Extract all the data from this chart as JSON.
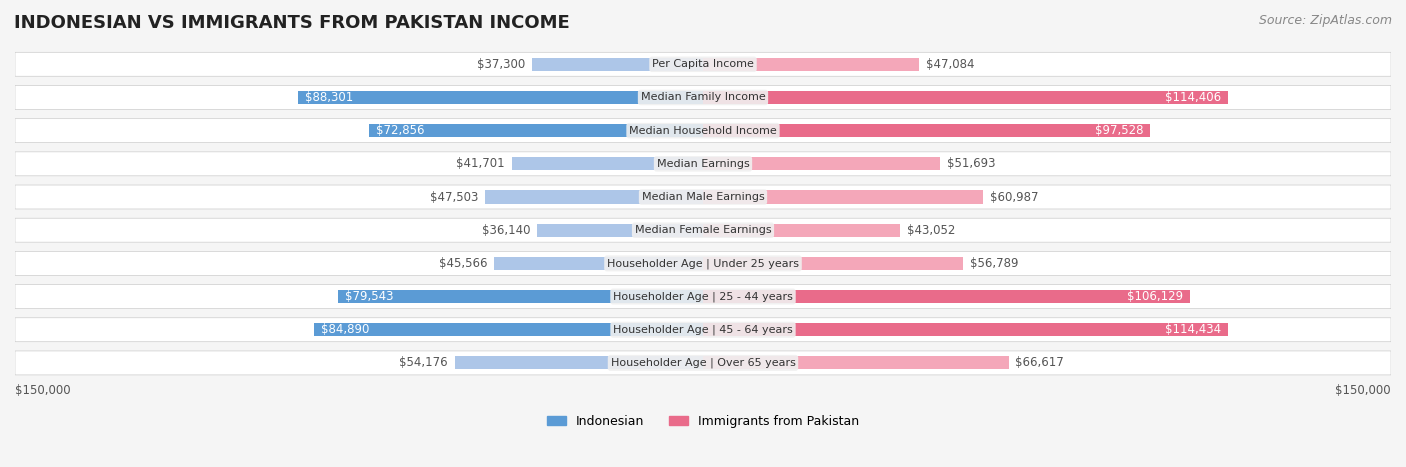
{
  "title": "INDONESIAN VS IMMIGRANTS FROM PAKISTAN INCOME",
  "source": "Source: ZipAtlas.com",
  "categories": [
    "Per Capita Income",
    "Median Family Income",
    "Median Household Income",
    "Median Earnings",
    "Median Male Earnings",
    "Median Female Earnings",
    "Householder Age | Under 25 years",
    "Householder Age | 25 - 44 years",
    "Householder Age | 45 - 64 years",
    "Householder Age | Over 65 years"
  ],
  "indonesian_values": [
    37300,
    88301,
    72856,
    41701,
    47503,
    36140,
    45566,
    79543,
    84890,
    54176
  ],
  "pakistan_values": [
    47084,
    114406,
    97528,
    51693,
    60987,
    43052,
    56789,
    106129,
    114434,
    66617
  ],
  "indonesian_labels": [
    "$37,300",
    "$88,301",
    "$72,856",
    "$41,701",
    "$47,503",
    "$36,140",
    "$45,566",
    "$79,543",
    "$84,890",
    "$54,176"
  ],
  "pakistan_labels": [
    "$47,084",
    "$114,406",
    "$97,528",
    "$51,693",
    "$60,987",
    "$43,052",
    "$56,789",
    "$106,129",
    "$114,434",
    "$66,617"
  ],
  "max_value": 150000,
  "indonesian_color_light": "#adc6e8",
  "indonesian_color_dark": "#5b9bd5",
  "pakistan_color_light": "#f4a7b9",
  "pakistan_color_dark": "#e96b8a",
  "label_color_light": "#555555",
  "label_color_white": "#ffffff",
  "bg_color": "#f5f5f5",
  "row_bg_color": "#ffffff",
  "center_label_bg": "#f0f0f0",
  "threshold_dark": 70000,
  "title_fontsize": 13,
  "source_fontsize": 9,
  "bar_label_fontsize": 8.5,
  "category_fontsize": 8,
  "legend_fontsize": 9,
  "axis_label_fontsize": 8.5
}
